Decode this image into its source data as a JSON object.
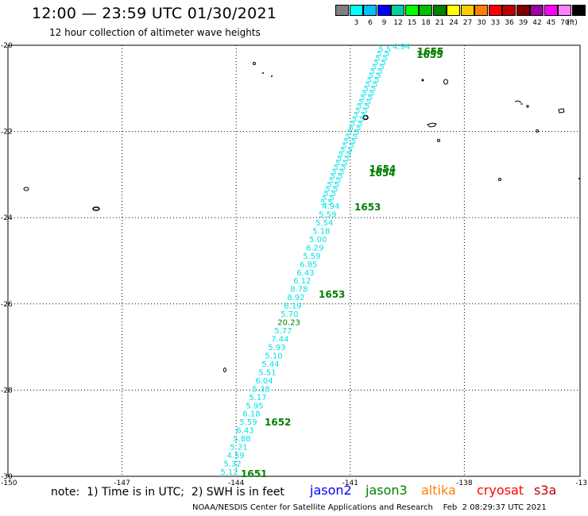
{
  "header": {
    "title": "12:00 — 23:59 UTC 01/30/2021",
    "subtitle": "12 hour collection of altimeter wave heights"
  },
  "legend": {
    "unit_label": "(ft)",
    "swatches": [
      {
        "label": "",
        "color": "#808080"
      },
      {
        "label": "3",
        "color": "#00ffff"
      },
      {
        "label": "6",
        "color": "#00bfff"
      },
      {
        "label": "9",
        "color": "#0000ff"
      },
      {
        "label": "12",
        "color": "#00d0a0"
      },
      {
        "label": "15",
        "color": "#00ff00"
      },
      {
        "label": "18",
        "color": "#00c000"
      },
      {
        "label": "21",
        "color": "#008000"
      },
      {
        "label": "24",
        "color": "#ffff00"
      },
      {
        "label": "27",
        "color": "#ffcc00"
      },
      {
        "label": "30",
        "color": "#ff8000"
      },
      {
        "label": "33",
        "color": "#ff0000"
      },
      {
        "label": "36",
        "color": "#c00000"
      },
      {
        "label": "39",
        "color": "#800000"
      },
      {
        "label": "42",
        "color": "#a000a0"
      },
      {
        "label": "45",
        "color": "#ff00ff"
      },
      {
        "label": "70",
        "color": "#ff80ff"
      },
      {
        "label": "",
        "color": "#000000"
      }
    ]
  },
  "axes": {
    "lat_ticks": [
      "-20",
      "-22",
      "-24",
      "-26",
      "-28",
      "-30"
    ],
    "lon_ticks": [
      "-150",
      "-147",
      "-144",
      "-141",
      "-138",
      "-13"
    ]
  },
  "track": {
    "color_cyan": "#00e0e8",
    "color_green": "#008000",
    "values": [
      "5.12",
      "5.32",
      "4.59",
      "5.21",
      "5.88",
      "6.43",
      "5.59",
      "6.18",
      "5.95",
      "5.17",
      "5.38",
      "6.04",
      "5.51",
      "5.44",
      "5.10",
      "5.93",
      "7.44",
      "5.77",
      "20.23",
      "5.70",
      "6.19",
      "8.92",
      "8.78",
      "6.12",
      "6.43",
      "6.85",
      "5.59",
      "6.29",
      "5.00",
      "5.18",
      "5.54",
      "5.59",
      "4.94"
    ],
    "time_labels": [
      "1651",
      "1652",
      "1653",
      "1653",
      "1654",
      "1654",
      "1655",
      "1655"
    ]
  },
  "footer": {
    "note": "note:  1) Time is in UTC;  2) SWH is in feet",
    "satellites": [
      {
        "name": "jason2",
        "color": "#0000ff"
      },
      {
        "name": "jason3",
        "color": "#008000"
      },
      {
        "name": "altika",
        "color": "#ff8000"
      },
      {
        "name": "cryosat",
        "color": "#ff0000"
      },
      {
        "name": "s3a",
        "color": "#c00000"
      }
    ],
    "credit": "NOAA/NESDIS Center for Satellite Applications and Research    Feb  2 08:29:37 UTC 2021"
  }
}
